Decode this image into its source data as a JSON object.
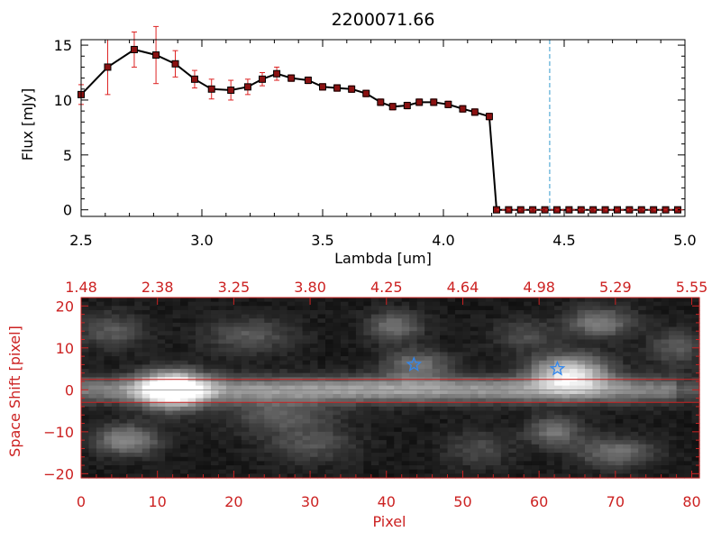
{
  "colors": {
    "background": "#ffffff",
    "axis_top": "#000000",
    "axis_bottom": "#cc2222",
    "errorbar": "#dd2222",
    "marker_fill": "#8a1111",
    "line": "#000000",
    "vline": "#3399cc",
    "star": "#3388ee",
    "extraction_lines": "#cc2222"
  },
  "chart_data": [
    {
      "type": "line",
      "title": "2200071.66",
      "xlabel": "Lambda [um]",
      "ylabel": "Flux [mJy]",
      "xlim": [
        2.5,
        5.0
      ],
      "ylim": [
        -0.6,
        15.5
      ],
      "xticks": [
        2.5,
        3.0,
        3.5,
        4.0,
        4.5,
        5.0
      ],
      "xtick_labels": [
        "2.5",
        "3.0",
        "3.5",
        "4.0",
        "4.5",
        "5.0"
      ],
      "yticks": [
        0,
        5,
        10,
        15
      ],
      "ytick_labels": [
        "0",
        "5",
        "10",
        "15"
      ],
      "vline_x": 4.44,
      "series": [
        {
          "name": "flux",
          "x": [
            2.5,
            2.61,
            2.72,
            2.81,
            2.89,
            2.97,
            3.04,
            3.12,
            3.19,
            3.25,
            3.31,
            3.37,
            3.44,
            3.5,
            3.56,
            3.62,
            3.68,
            3.74,
            3.79,
            3.85,
            3.9,
            3.96,
            4.02,
            4.08,
            4.13,
            4.19,
            4.22,
            4.27,
            4.32,
            4.37,
            4.42,
            4.47,
            4.52,
            4.57,
            4.62,
            4.67,
            4.72,
            4.77,
            4.82,
            4.87,
            4.92,
            4.97
          ],
          "y": [
            10.5,
            13.0,
            14.6,
            14.1,
            13.3,
            11.9,
            11.0,
            10.9,
            11.2,
            11.9,
            12.4,
            12.0,
            11.8,
            11.2,
            11.1,
            11.0,
            10.6,
            9.8,
            9.4,
            9.5,
            9.8,
            9.8,
            9.6,
            9.2,
            8.9,
            8.5,
            0.0,
            0.0,
            0.0,
            0.0,
            0.0,
            0.0,
            0.0,
            0.0,
            0.0,
            0.0,
            0.0,
            0.0,
            0.0,
            0.0,
            0.0,
            0.0
          ],
          "yerr": [
            0.9,
            2.5,
            1.6,
            2.6,
            1.2,
            0.8,
            0.9,
            0.9,
            0.7,
            0.6,
            0.6,
            0.3,
            0.3,
            0.3,
            0.3,
            0.3,
            0.3,
            0.3,
            0.3,
            0.3,
            0.3,
            0.3,
            0.3,
            0.3,
            0.3,
            0.3,
            0,
            0,
            0,
            0,
            0,
            0,
            0,
            0,
            0,
            0,
            0,
            0,
            0,
            0,
            0,
            0
          ]
        }
      ]
    },
    {
      "type": "heatmap",
      "xlabel": "Pixel",
      "ylabel": "Space Shift [pixel]",
      "xlim": [
        0,
        81
      ],
      "ylim": [
        -21,
        22
      ],
      "xticks": [
        0,
        10,
        20,
        30,
        40,
        50,
        60,
        70,
        80
      ],
      "xtick_labels": [
        "0",
        "10",
        "20",
        "30",
        "40",
        "50",
        "60",
        "70",
        "80"
      ],
      "yticks": [
        -20,
        -10,
        0,
        10,
        20
      ],
      "ytick_labels": [
        "−20",
        "−10",
        "0",
        "10",
        "20"
      ],
      "top_axis_ticks": [
        0,
        10,
        20,
        30,
        40,
        50,
        60,
        70,
        80
      ],
      "top_axis_labels": [
        "1.48",
        "2.38",
        "3.25",
        "3.80",
        "4.25",
        "4.64",
        "4.98",
        "5.29",
        "5.55"
      ],
      "extraction_lines_y": [
        2.5,
        -3.0
      ],
      "trace_center_y": 0,
      "stars": [
        {
          "x": 43.6,
          "y": 6
        },
        {
          "x": 62.4,
          "y": 5
        }
      ],
      "blobs": [
        {
          "x": 12,
          "y": 0,
          "amp": 1.0,
          "sx": 3.0,
          "sy": 3.0
        },
        {
          "x": 64,
          "y": 4,
          "amp": 0.75,
          "sx": 3.5,
          "sy": 3.0
        },
        {
          "x": 44,
          "y": 6,
          "amp": 0.35,
          "sx": 3.0,
          "sy": 2.5
        },
        {
          "x": 41,
          "y": 15,
          "amp": 0.35,
          "sx": 2.5,
          "sy": 2.5
        },
        {
          "x": 68,
          "y": 16,
          "amp": 0.4,
          "sx": 3.0,
          "sy": 2.5
        },
        {
          "x": 6,
          "y": -12,
          "amp": 0.45,
          "sx": 3.0,
          "sy": 2.5
        },
        {
          "x": 62,
          "y": -10,
          "amp": 0.35,
          "sx": 2.5,
          "sy": 2.5
        },
        {
          "x": 70,
          "y": -15,
          "amp": 0.35,
          "sx": 3.5,
          "sy": 2.5
        },
        {
          "x": 22,
          "y": 13,
          "amp": 0.25,
          "sx": 4.0,
          "sy": 3.0
        },
        {
          "x": 30,
          "y": -13,
          "amp": 0.22,
          "sx": 4.0,
          "sy": 3.0
        },
        {
          "x": 52,
          "y": -14,
          "amp": 0.2,
          "sx": 3.0,
          "sy": 3.0
        },
        {
          "x": 4,
          "y": 14,
          "amp": 0.25,
          "sx": 3.0,
          "sy": 3.0
        },
        {
          "x": 78,
          "y": 10,
          "amp": 0.25,
          "sx": 2.5,
          "sy": 3.0
        },
        {
          "x": 26,
          "y": -6,
          "amp": 0.25,
          "sx": 5.0,
          "sy": 3.0
        },
        {
          "x": 58,
          "y": 13,
          "amp": 0.2,
          "sx": 3.0,
          "sy": 2.5
        }
      ]
    }
  ]
}
